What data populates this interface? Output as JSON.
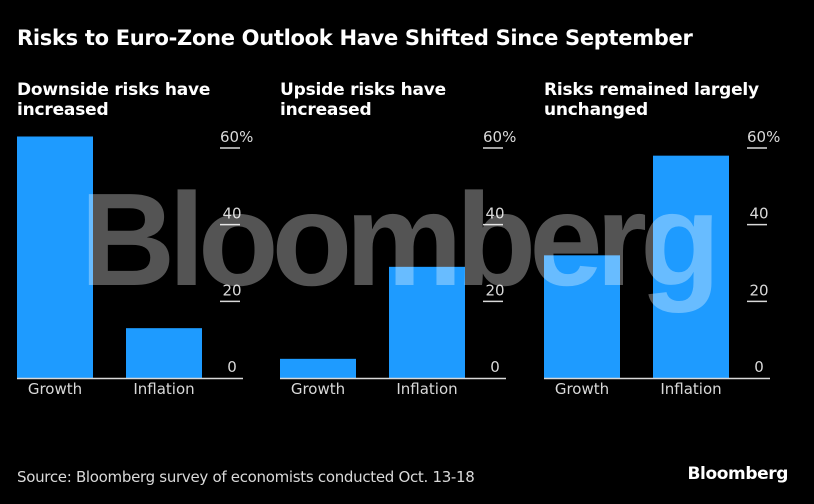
{
  "title": "Risks to Euro-Zone Outlook Have Shifted Since September",
  "source": "Source: Bloomberg survey of economists conducted Oct. 13-18",
  "logo": "Bloomberg",
  "watermark": "Bloomberg",
  "colors": {
    "bar": "#1e9bff",
    "background": "#000000",
    "axis": "#d9d9d9"
  },
  "chart_data": [
    {
      "type": "bar",
      "title": "Downside risks have increased",
      "categories": [
        "Growth",
        "Inflation"
      ],
      "values": [
        63,
        13
      ],
      "ylim": [
        0,
        60
      ],
      "yticks": [
        0,
        20,
        40,
        60
      ],
      "ytick_labels": [
        "0",
        "20",
        "40",
        "60%"
      ],
      "xlabel": "",
      "ylabel": "",
      "grid": false
    },
    {
      "type": "bar",
      "title": "Upside risks have increased",
      "categories": [
        "Growth",
        "Inflation"
      ],
      "values": [
        5,
        29
      ],
      "ylim": [
        0,
        60
      ],
      "yticks": [
        0,
        20,
        40,
        60
      ],
      "ytick_labels": [
        "0",
        "20",
        "40",
        "60%"
      ],
      "xlabel": "",
      "ylabel": "",
      "grid": false
    },
    {
      "type": "bar",
      "title": "Risks remained largely unchanged",
      "categories": [
        "Growth",
        "Inflation"
      ],
      "values": [
        32,
        58
      ],
      "ylim": [
        0,
        60
      ],
      "yticks": [
        0,
        20,
        40,
        60
      ],
      "ytick_labels": [
        "0",
        "20",
        "40",
        "60%"
      ],
      "xlabel": "",
      "ylabel": "",
      "grid": false
    }
  ]
}
